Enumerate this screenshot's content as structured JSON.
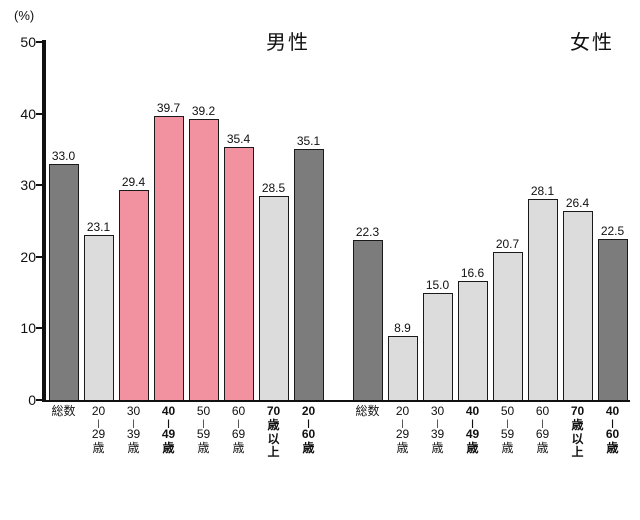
{
  "chart_data": {
    "type": "bar",
    "unit_label": "(%)",
    "ylim": [
      0,
      50
    ],
    "yticks": [
      0,
      10,
      20,
      30,
      40,
      50
    ],
    "grid": false,
    "legend": "none",
    "colors": {
      "dark": "#7c7c7c",
      "light": "#dcdcdc",
      "pink": "#f2919f"
    },
    "groups": [
      {
        "title": "男性",
        "bars": [
          {
            "label": [
              "総数"
            ],
            "value": 33.0,
            "color": "dark",
            "bold": false
          },
          {
            "label": [
              "20",
              "|",
              "29",
              "歳"
            ],
            "value": 23.1,
            "color": "light",
            "bold": false
          },
          {
            "label": [
              "30",
              "|",
              "39",
              "歳"
            ],
            "value": 29.4,
            "color": "pink",
            "bold": false
          },
          {
            "label": [
              "40",
              "|",
              "49",
              "歳"
            ],
            "value": 39.7,
            "color": "pink",
            "bold": true
          },
          {
            "label": [
              "50",
              "|",
              "59",
              "歳"
            ],
            "value": 39.2,
            "color": "pink",
            "bold": false
          },
          {
            "label": [
              "60",
              "|",
              "69",
              "歳"
            ],
            "value": 35.4,
            "color": "pink",
            "bold": false
          },
          {
            "label": [
              "70",
              "歳",
              "以",
              "上"
            ],
            "value": 28.5,
            "color": "light",
            "bold": true
          },
          {
            "label": [
              "20",
              "|",
              "60",
              "歳"
            ],
            "value": 35.1,
            "color": "dark",
            "bold": true
          }
        ]
      },
      {
        "title": "女性",
        "bars": [
          {
            "label": [
              "総数"
            ],
            "value": 22.3,
            "color": "dark",
            "bold": false
          },
          {
            "label": [
              "20",
              "|",
              "29",
              "歳"
            ],
            "value": 8.9,
            "color": "light",
            "bold": false
          },
          {
            "label": [
              "30",
              "|",
              "39",
              "歳"
            ],
            "value": 15.0,
            "color": "light",
            "bold": false
          },
          {
            "label": [
              "40",
              "|",
              "49",
              "歳"
            ],
            "value": 16.6,
            "color": "light",
            "bold": true
          },
          {
            "label": [
              "50",
              "|",
              "59",
              "歳"
            ],
            "value": 20.7,
            "color": "light",
            "bold": false
          },
          {
            "label": [
              "60",
              "|",
              "69",
              "歳"
            ],
            "value": 28.1,
            "color": "light",
            "bold": false
          },
          {
            "label": [
              "70",
              "歳",
              "以",
              "上"
            ],
            "value": 26.4,
            "color": "light",
            "bold": true
          },
          {
            "label": [
              "40",
              "|",
              "60",
              "歳"
            ],
            "value": 22.5,
            "color": "dark",
            "bold": true
          }
        ]
      }
    ]
  }
}
